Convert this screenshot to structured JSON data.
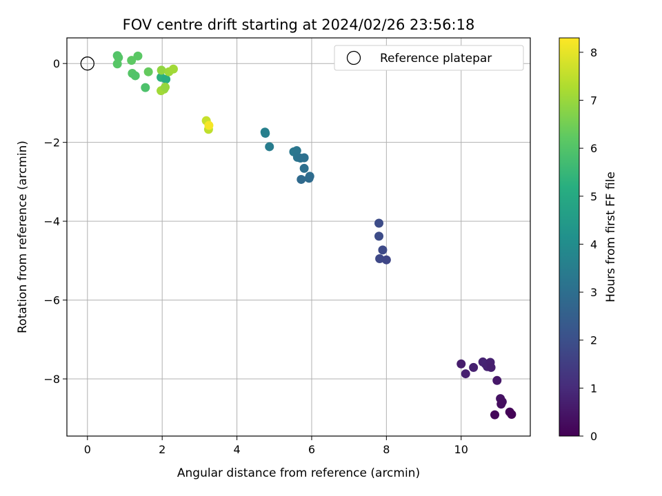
{
  "chart_data": {
    "type": "scatter",
    "title": "FOV centre drift starting at 2024/02/26 23:56:18",
    "xlabel": "Angular distance from reference (arcmin)",
    "ylabel": "Rotation from reference (arcmin)",
    "xlim": [
      -0.55,
      11.85
    ],
    "ylim": [
      -9.45,
      0.65
    ],
    "x_ticks": [
      0,
      2,
      4,
      6,
      8,
      10
    ],
    "y_ticks": [
      0,
      -2,
      -4,
      -6,
      -8
    ],
    "grid": true,
    "legend": {
      "position": "top-right",
      "entries": [
        "Reference platepar"
      ]
    },
    "reference_point": {
      "x": 0,
      "y": 0,
      "label": "Reference platepar"
    },
    "colorbar": {
      "label": "Hours from first FF file",
      "range": [
        0,
        8.3
      ],
      "ticks": [
        0,
        1,
        2,
        3,
        4,
        5,
        6,
        7,
        8
      ],
      "colormap": "viridis"
    },
    "points": [
      {
        "x": 10.0,
        "y": -7.62,
        "c": 0.65
      },
      {
        "x": 10.12,
        "y": -7.87,
        "c": 0.7
      },
      {
        "x": 10.33,
        "y": -7.71,
        "c": 0.75
      },
      {
        "x": 10.58,
        "y": -7.57,
        "c": 0.8
      },
      {
        "x": 10.65,
        "y": -7.62,
        "c": 0.85
      },
      {
        "x": 10.7,
        "y": -7.69,
        "c": 0.8
      },
      {
        "x": 10.78,
        "y": -7.58,
        "c": 0.75
      },
      {
        "x": 10.8,
        "y": -7.71,
        "c": 0.7
      },
      {
        "x": 10.96,
        "y": -8.04,
        "c": 0.55
      },
      {
        "x": 11.05,
        "y": -8.5,
        "c": 0.4
      },
      {
        "x": 11.1,
        "y": -8.58,
        "c": 0.35
      },
      {
        "x": 11.07,
        "y": -8.64,
        "c": 0.3
      },
      {
        "x": 10.9,
        "y": -8.91,
        "c": 0.15
      },
      {
        "x": 11.3,
        "y": -8.84,
        "c": 0.1
      },
      {
        "x": 11.35,
        "y": -8.9,
        "c": 0.05
      },
      {
        "x": 7.8,
        "y": -4.05,
        "c": 1.9
      },
      {
        "x": 7.8,
        "y": -4.38,
        "c": 1.9
      },
      {
        "x": 7.9,
        "y": -4.73,
        "c": 1.85
      },
      {
        "x": 7.82,
        "y": -4.95,
        "c": 1.8
      },
      {
        "x": 8.0,
        "y": -4.98,
        "c": 1.75
      },
      {
        "x": 4.75,
        "y": -1.74,
        "c": 3.6
      },
      {
        "x": 4.76,
        "y": -1.77,
        "c": 3.55
      },
      {
        "x": 4.87,
        "y": -2.11,
        "c": 3.45
      },
      {
        "x": 5.52,
        "y": -2.24,
        "c": 3.3
      },
      {
        "x": 5.6,
        "y": -2.21,
        "c": 3.25
      },
      {
        "x": 5.62,
        "y": -2.38,
        "c": 3.2
      },
      {
        "x": 5.7,
        "y": -2.4,
        "c": 3.1
      },
      {
        "x": 5.8,
        "y": -2.39,
        "c": 3.05
      },
      {
        "x": 5.8,
        "y": -2.66,
        "c": 3.0
      },
      {
        "x": 5.95,
        "y": -2.86,
        "c": 2.95
      },
      {
        "x": 5.93,
        "y": -2.91,
        "c": 2.9
      },
      {
        "x": 5.72,
        "y": -2.94,
        "c": 2.85
      },
      {
        "x": 0.8,
        "y": 0.2,
        "c": 6.0
      },
      {
        "x": 0.83,
        "y": 0.15,
        "c": 6.05
      },
      {
        "x": 0.8,
        "y": -0.01,
        "c": 6.1
      },
      {
        "x": 1.18,
        "y": 0.08,
        "c": 6.2
      },
      {
        "x": 1.35,
        "y": 0.19,
        "c": 6.15
      },
      {
        "x": 1.2,
        "y": -0.25,
        "c": 6.05
      },
      {
        "x": 1.28,
        "y": -0.31,
        "c": 6.0
      },
      {
        "x": 1.63,
        "y": -0.21,
        "c": 6.3
      },
      {
        "x": 1.55,
        "y": -0.61,
        "c": 5.9
      },
      {
        "x": 1.97,
        "y": -0.35,
        "c": 5.3
      },
      {
        "x": 2.1,
        "y": -0.4,
        "c": 5.2
      },
      {
        "x": 1.98,
        "y": -0.17,
        "c": 6.9
      },
      {
        "x": 2.05,
        "y": -0.65,
        "c": 7.0
      },
      {
        "x": 1.97,
        "y": -0.69,
        "c": 7.1
      },
      {
        "x": 2.08,
        "y": -0.6,
        "c": 6.95
      },
      {
        "x": 2.18,
        "y": -0.21,
        "c": 7.05
      },
      {
        "x": 2.3,
        "y": -0.14,
        "c": 7.1
      },
      {
        "x": 3.18,
        "y": -1.45,
        "c": 7.6
      },
      {
        "x": 3.24,
        "y": -1.67,
        "c": 7.5
      },
      {
        "x": 3.25,
        "y": -1.57,
        "c": 8.2
      }
    ]
  }
}
